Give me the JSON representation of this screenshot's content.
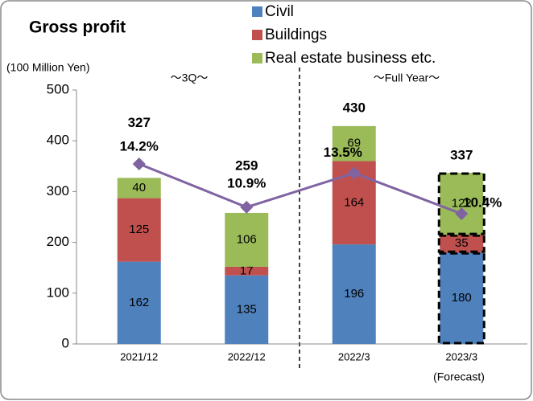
{
  "chart_data": {
    "type": "bar",
    "stacked": true,
    "title": "Gross profit",
    "annotations": [
      "(100 Million Yen)",
      "～3Q～",
      "～Full Year～",
      "(Forecast)"
    ],
    "categories": [
      "2021/12",
      "2022/12",
      "2022/3",
      "2023/3"
    ],
    "series": [
      {
        "name": "Civil",
        "color": "#4f81bd",
        "values": [
          162,
          135,
          196,
          180
        ]
      },
      {
        "name": "Buildings",
        "color": "#c0504d",
        "values": [
          125,
          17,
          164,
          35
        ]
      },
      {
        "name": "Real estate  business etc.",
        "color": "#9bbb59",
        "values": [
          40,
          106,
          69,
          122
        ]
      }
    ],
    "totals": [
      327,
      259,
      430,
      337
    ],
    "margin": {
      "type": "line",
      "axis": "y2",
      "color": "#8064a2",
      "values": [
        14.2,
        10.9,
        13.5,
        10.4
      ],
      "value_labels": [
        "14.2%",
        "10.9%",
        "13.5%",
        "10.4%"
      ]
    },
    "ylim": [
      0,
      500
    ],
    "yticks": [
      0,
      100,
      200,
      300,
      400,
      500
    ],
    "y2lim": [
      0.47,
      19.84
    ]
  }
}
